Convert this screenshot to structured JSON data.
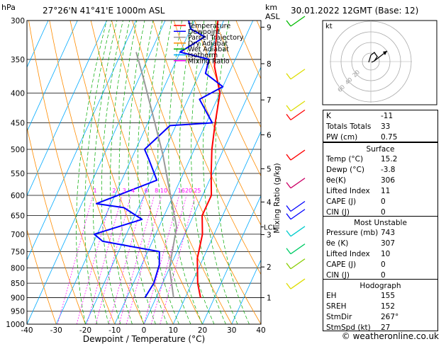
{
  "header": {
    "location": "27°26'N  41°41'E  1000m  ASL",
    "date": "30.01.2022  12GMT  (Base: 12)"
  },
  "axes": {
    "left_unit": "hPa",
    "right_unit_km": "km",
    "right_unit_asl": "ASL",
    "xlabel": "Dewpoint / Temperature (°C)",
    "mixing_ratio_label": "Mixing Ratio (g/kg)",
    "lcl_label": "LCL"
  },
  "legend": [
    {
      "name": "Temperature",
      "color": "#ff0000"
    },
    {
      "name": "Dewpoint",
      "color": "#0000ff"
    },
    {
      "name": "Parcel Trajectory",
      "color": "#999999"
    },
    {
      "name": "Dry Adiabat",
      "color": "#ff8c00"
    },
    {
      "name": "Wet Adiabat",
      "color": "#00aa00"
    },
    {
      "name": "Isotherm",
      "color": "#00aaff"
    },
    {
      "name": "Mixing Ratio",
      "color": "#ff00ff"
    }
  ],
  "colors": {
    "temperature": "#ff0000",
    "dewpoint": "#0000ff",
    "parcel": "#999999",
    "dry_adiabat": "#ff8c00",
    "wet_adiabat": "#00aa00",
    "isotherm": "#00aaff",
    "mixing_ratio": "#ff00ff"
  },
  "chart_data": {
    "type": "line",
    "title": "",
    "ylabel": "hPa",
    "xlabel": "Dewpoint / Temperature (°C)",
    "xlim": [
      -40,
      40
    ],
    "ylim": [
      1000,
      300
    ],
    "log_scale_y": true,
    "pressure_ticks": [
      300,
      350,
      400,
      450,
      500,
      550,
      600,
      650,
      700,
      750,
      800,
      850,
      900,
      950,
      1000
    ],
    "temperature_ticks": [
      -40,
      -30,
      -20,
      -10,
      0,
      10,
      20,
      30,
      40
    ],
    "km_ticks": [
      {
        "km": "1",
        "p": 900
      },
      {
        "km": "2",
        "p": 797
      },
      {
        "km": "3",
        "p": 701
      },
      {
        "km": "4",
        "p": 616
      },
      {
        "km": "5",
        "p": 540
      },
      {
        "km": "6",
        "p": 472
      },
      {
        "km": "7",
        "p": 411
      },
      {
        "km": "8",
        "p": 356
      },
      {
        "km": "9",
        "p": 308
      }
    ],
    "lcl_pressure": 680,
    "mixing_ratio_values": [
      "1",
      "2",
      "3",
      "4",
      "6",
      "8",
      "10",
      "16",
      "20",
      "25"
    ],
    "series": [
      {
        "name": "Temperature",
        "points": [
          [
            15.2,
            900
          ],
          [
            12,
            850
          ],
          [
            8,
            770
          ],
          [
            6,
            700
          ],
          [
            3,
            650
          ],
          [
            3,
            600
          ],
          [
            -0.5,
            550
          ],
          [
            -4,
            500
          ],
          [
            -7,
            450
          ],
          [
            -10,
            400
          ],
          [
            -16,
            360
          ],
          [
            -19,
            330
          ],
          [
            -21,
            310
          ],
          [
            -22,
            300
          ]
        ]
      },
      {
        "name": "Dewpoint",
        "points": [
          [
            -3.8,
            900
          ],
          [
            -3,
            850
          ],
          [
            -4,
            790
          ],
          [
            -6,
            750
          ],
          [
            -27,
            720
          ],
          [
            -31,
            700
          ],
          [
            -17,
            660
          ],
          [
            -25,
            630
          ],
          [
            -35,
            620
          ],
          [
            -18,
            565
          ],
          [
            -24,
            520
          ],
          [
            -27,
            500
          ],
          [
            -22,
            455
          ],
          [
            -8,
            450
          ],
          [
            -16,
            410
          ],
          [
            -10,
            390
          ],
          [
            -18,
            370
          ],
          [
            -19,
            350
          ],
          [
            -30,
            340
          ],
          [
            -27,
            330
          ],
          [
            -24,
            320
          ],
          [
            -30,
            310
          ],
          [
            -32,
            300
          ]
        ]
      },
      {
        "name": "Parcel Trajectory",
        "points": [
          [
            6,
            900
          ],
          [
            0,
            800
          ],
          [
            -4,
            680
          ],
          [
            -11,
            600
          ],
          [
            -20,
            510
          ],
          [
            -29,
            440
          ],
          [
            -38,
            380
          ],
          [
            -45,
            340
          ]
        ]
      }
    ],
    "wind_barbs": [
      {
        "p": 300,
        "color": "#00bb00"
      },
      {
        "p": 370,
        "color": "#dddd00"
      },
      {
        "p": 420,
        "color": "#dddd00"
      },
      {
        "p": 435,
        "color": "#ff0000"
      },
      {
        "p": 510,
        "color": "#ff0000"
      },
      {
        "p": 570,
        "color": "#cc0066"
      },
      {
        "p": 625,
        "color": "#0000ff"
      },
      {
        "p": 645,
        "color": "#0000ff"
      },
      {
        "p": 690,
        "color": "#00cccc"
      },
      {
        "p": 740,
        "color": "#00cc66"
      },
      {
        "p": 785,
        "color": "#88cc00"
      },
      {
        "p": 850,
        "color": "#dddd00"
      }
    ]
  },
  "hodograph": {
    "unit": "kt",
    "ring_labels": [
      "20",
      "40",
      "60"
    ]
  },
  "indices": [
    {
      "key": "K",
      "value": "-11"
    },
    {
      "key": "Totals Totals",
      "value": "33"
    },
    {
      "key": "PW (cm)",
      "value": "0.75"
    }
  ],
  "surface": {
    "title": "Surface",
    "rows": [
      {
        "key": "Temp (°C)",
        "value": "15.2"
      },
      {
        "key": "Dewp (°C)",
        "value": "-3.8"
      },
      {
        "key": "θe(K)",
        "value": "306"
      },
      {
        "key": "Lifted Index",
        "value": "11"
      },
      {
        "key": "CAPE (J)",
        "value": "0"
      },
      {
        "key": "CIN (J)",
        "value": "0"
      }
    ]
  },
  "most_unstable": {
    "title": "Most Unstable",
    "rows": [
      {
        "key": "Pressure (mb)",
        "value": "743"
      },
      {
        "key": "θe (K)",
        "value": "307"
      },
      {
        "key": "Lifted Index",
        "value": "10"
      },
      {
        "key": "CAPE (J)",
        "value": "0"
      },
      {
        "key": "CIN (J)",
        "value": "0"
      }
    ]
  },
  "hodograph_table": {
    "title": "Hodograph",
    "rows": [
      {
        "key": "EH",
        "value": "155"
      },
      {
        "key": "SREH",
        "value": "152"
      },
      {
        "key": "StmDir",
        "value": "267°"
      },
      {
        "key": "StmSpd (kt)",
        "value": "27"
      }
    ]
  },
  "footer": "© weatheronline.co.uk"
}
